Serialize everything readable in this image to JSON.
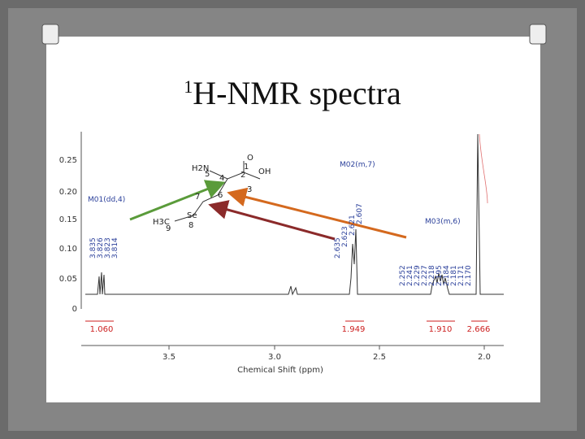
{
  "title": {
    "superscript": "1",
    "text": "H-NMR spectra"
  },
  "spectrum": {
    "y_axis_labels": [
      "0.25",
      "0.20",
      "0.15",
      "0.10",
      "0.05",
      "0"
    ],
    "x_axis_labels": [
      "3.5",
      "3.0",
      "2.5",
      "2.0"
    ],
    "x_axis_title": "Chemical Shift (ppm)",
    "multiplets": [
      {
        "name": "M01(dd,4)",
        "peaks": [
          "3.835",
          "3.826",
          "3.823",
          "3.814"
        ]
      },
      {
        "name": "M02(m,7)",
        "peaks": [
          "2.635",
          "2.623",
          "2.621",
          "2.607"
        ]
      },
      {
        "name": "M03(m,6)",
        "peaks": [
          "2.252",
          "2.241",
          "2.229",
          "2.227",
          "2.218",
          "2.195",
          "2.184",
          "2.181",
          "2.171",
          "2.170"
        ]
      }
    ],
    "integrals": [
      "1.060",
      "1.949",
      "1.910",
      "2.666"
    ],
    "structure": {
      "atoms": [
        "H2N",
        "5",
        "O",
        "1",
        "2",
        "OH",
        "3",
        "4",
        "7",
        "6",
        "H3C",
        "9",
        "Se",
        "8"
      ]
    }
  }
}
